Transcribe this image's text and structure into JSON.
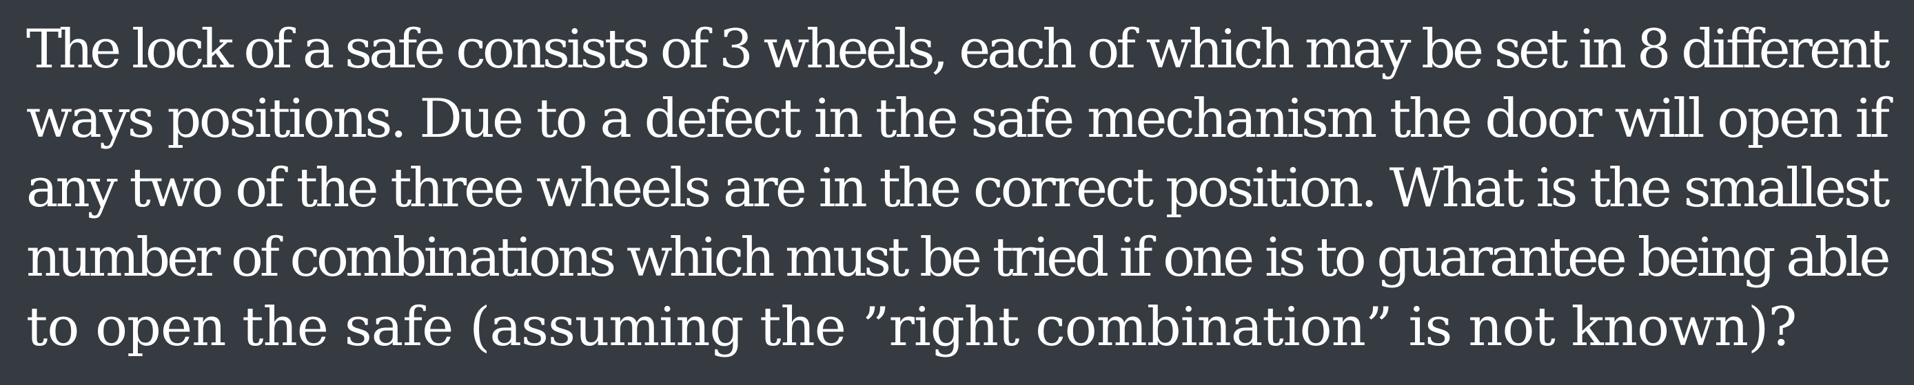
{
  "problem": {
    "lines": [
      "The lock of a safe consists of 3 wheels, each of which may be set in 8 different",
      "ways positions. Due to a defect in the safe mechanism the door will open if",
      "any two of the three wheels are in the correct position. What is the smallest",
      "number of combinations which must be tried if one is to guarantee being able",
      "to open the safe (assuming the ”right combination” is not known)?"
    ]
  }
}
